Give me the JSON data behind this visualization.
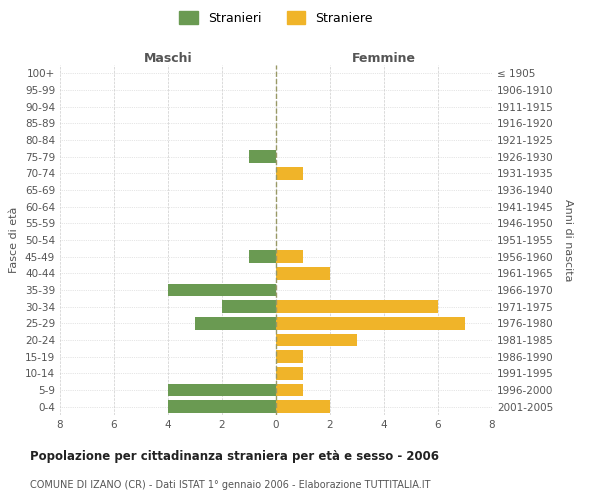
{
  "age_groups": [
    "100+",
    "95-99",
    "90-94",
    "85-89",
    "80-84",
    "75-79",
    "70-74",
    "65-69",
    "60-64",
    "55-59",
    "50-54",
    "45-49",
    "40-44",
    "35-39",
    "30-34",
    "25-29",
    "20-24",
    "15-19",
    "10-14",
    "5-9",
    "0-4"
  ],
  "birth_years": [
    "≤ 1905",
    "1906-1910",
    "1911-1915",
    "1916-1920",
    "1921-1925",
    "1926-1930",
    "1931-1935",
    "1936-1940",
    "1941-1945",
    "1946-1950",
    "1951-1955",
    "1956-1960",
    "1961-1965",
    "1966-1970",
    "1971-1975",
    "1976-1980",
    "1981-1985",
    "1986-1990",
    "1991-1995",
    "1996-2000",
    "2001-2005"
  ],
  "maschi": [
    0,
    0,
    0,
    0,
    0,
    1,
    0,
    0,
    0,
    0,
    0,
    1,
    0,
    4,
    2,
    3,
    0,
    0,
    0,
    4,
    4
  ],
  "femmine": [
    0,
    0,
    0,
    0,
    0,
    0,
    1,
    0,
    0,
    0,
    0,
    1,
    2,
    0,
    6,
    7,
    3,
    1,
    1,
    1,
    2
  ],
  "maschi_color": "#6a9a52",
  "femmine_color": "#f0b429",
  "title": "Popolazione per cittadinanza straniera per età e sesso - 2006",
  "subtitle": "COMUNE DI IZANO (CR) - Dati ISTAT 1° gennaio 2006 - Elaborazione TUTTITALIA.IT",
  "label_maschi": "Maschi",
  "label_femmine": "Femmine",
  "ylabel_left": "Fasce di età",
  "ylabel_right": "Anni di nascita",
  "legend_maschi": "Stranieri",
  "legend_femmine": "Straniere",
  "xlim": 8,
  "background_color": "#ffffff",
  "grid_color": "#cccccc"
}
